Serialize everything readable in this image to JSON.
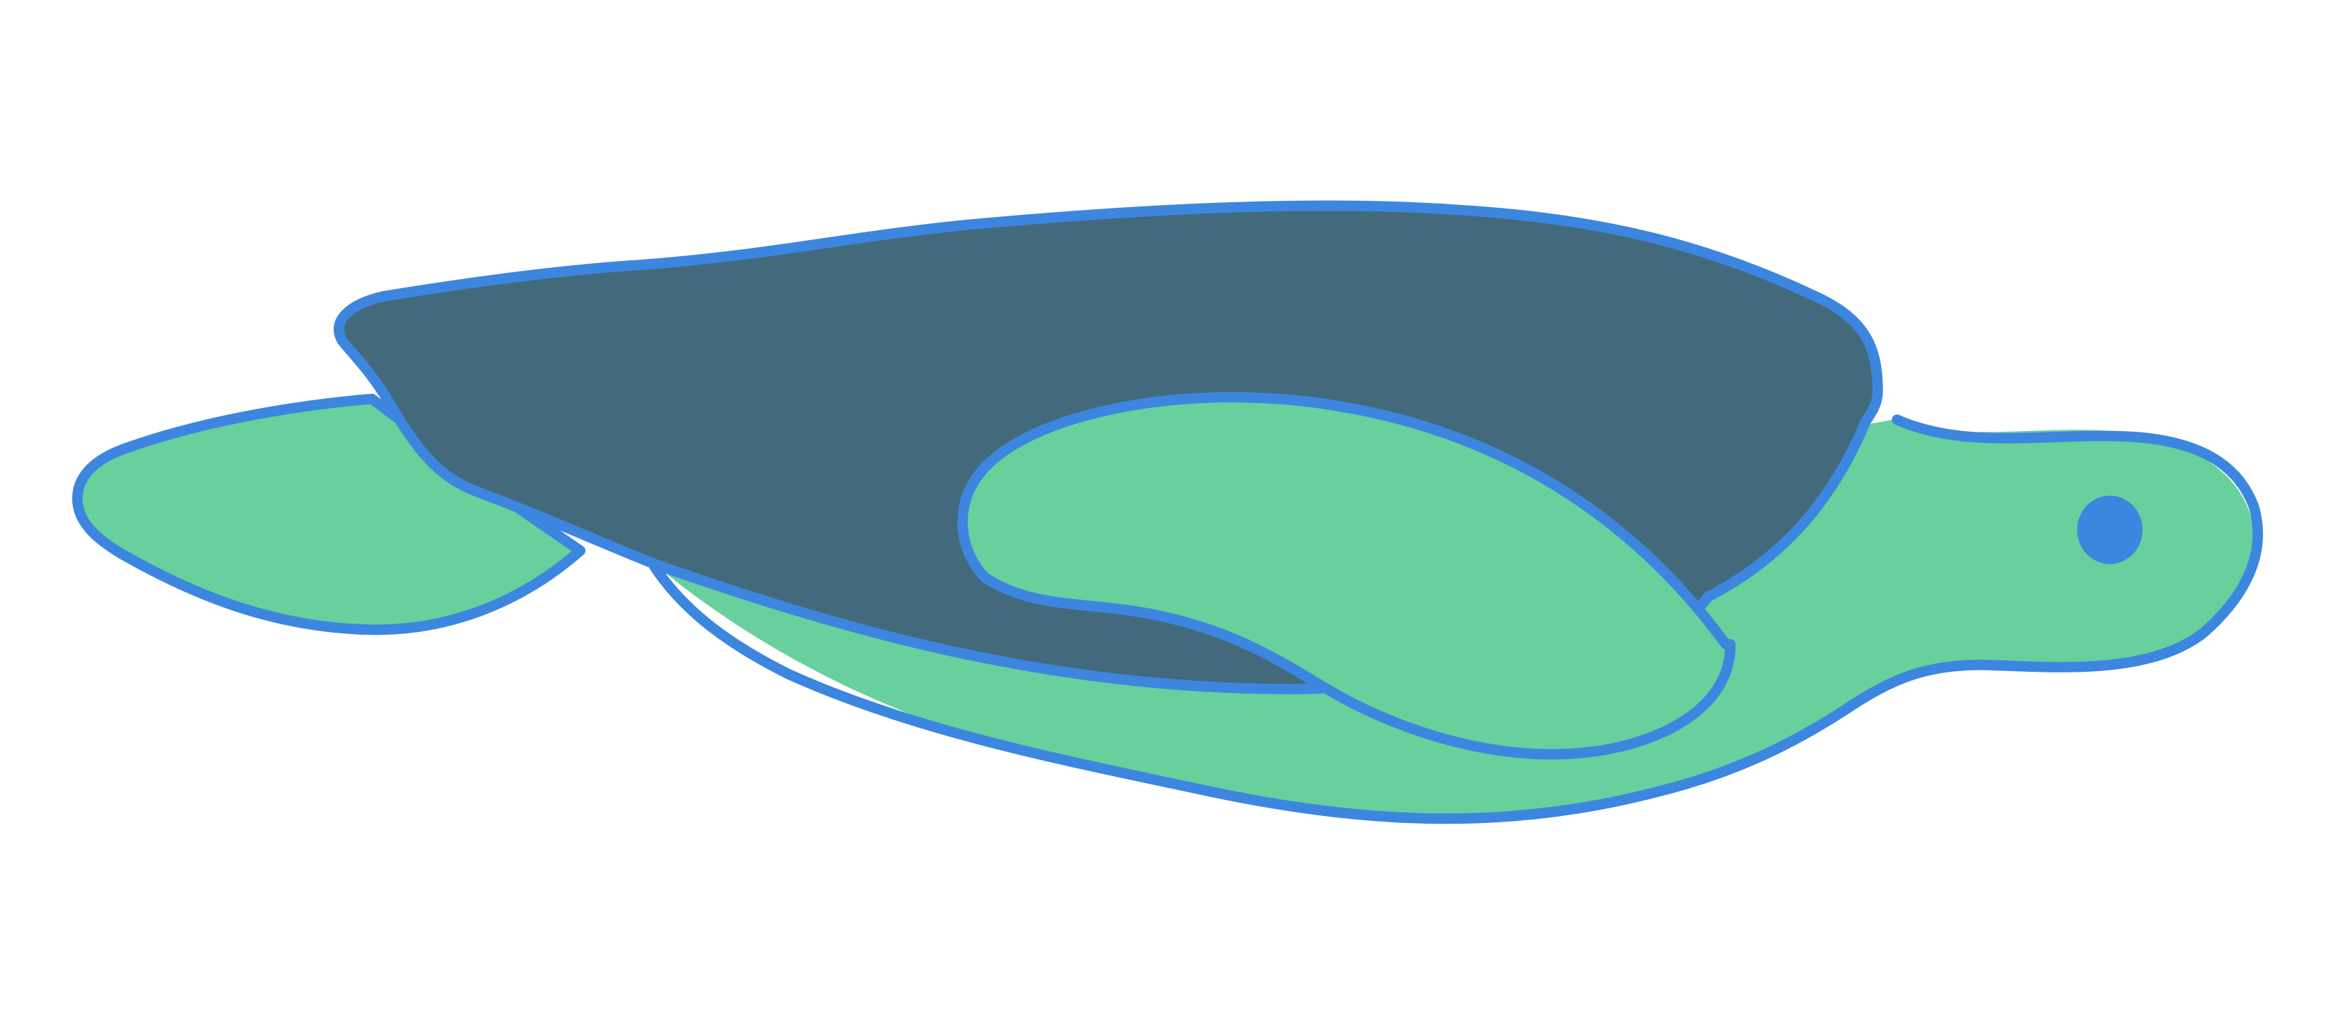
{
  "illustration": {
    "subject": "sea-turtle",
    "colors": {
      "background": "#ffffff",
      "body": "#68d09c",
      "shell": "#426a7c",
      "outline": "#3d86e0",
      "eye": "#3d86e0"
    }
  }
}
